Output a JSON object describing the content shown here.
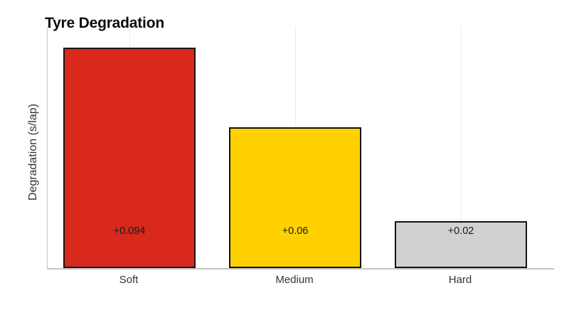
{
  "chart_data": {
    "type": "bar",
    "title": "Tyre Degradation",
    "xlabel": "",
    "ylabel": "Degradation (s/lap)",
    "categories": [
      "Soft",
      "Medium",
      "Hard"
    ],
    "values": [
      0.094,
      0.06,
      0.02
    ],
    "bar_labels": [
      "+0.094",
      "+0.06",
      "+0.02"
    ],
    "bar_colors": [
      "#d8291c",
      "#ffd100",
      "#d2d0d1"
    ],
    "bar_border_color": "#141414",
    "ylim": [
      0,
      0.103
    ],
    "grid": "faint vertical gridline at each bar center",
    "legend_position": "none",
    "value_label_alignment": "all value labels at same fixed height near bar bases"
  },
  "colors": {
    "background": "#ffffff",
    "axis_line": "#c6c6c6",
    "gridline": "#ededed",
    "title_text": "#0d0d0d",
    "tick_label_text": "#333333",
    "bar_label_text": "#1b1b1b"
  }
}
